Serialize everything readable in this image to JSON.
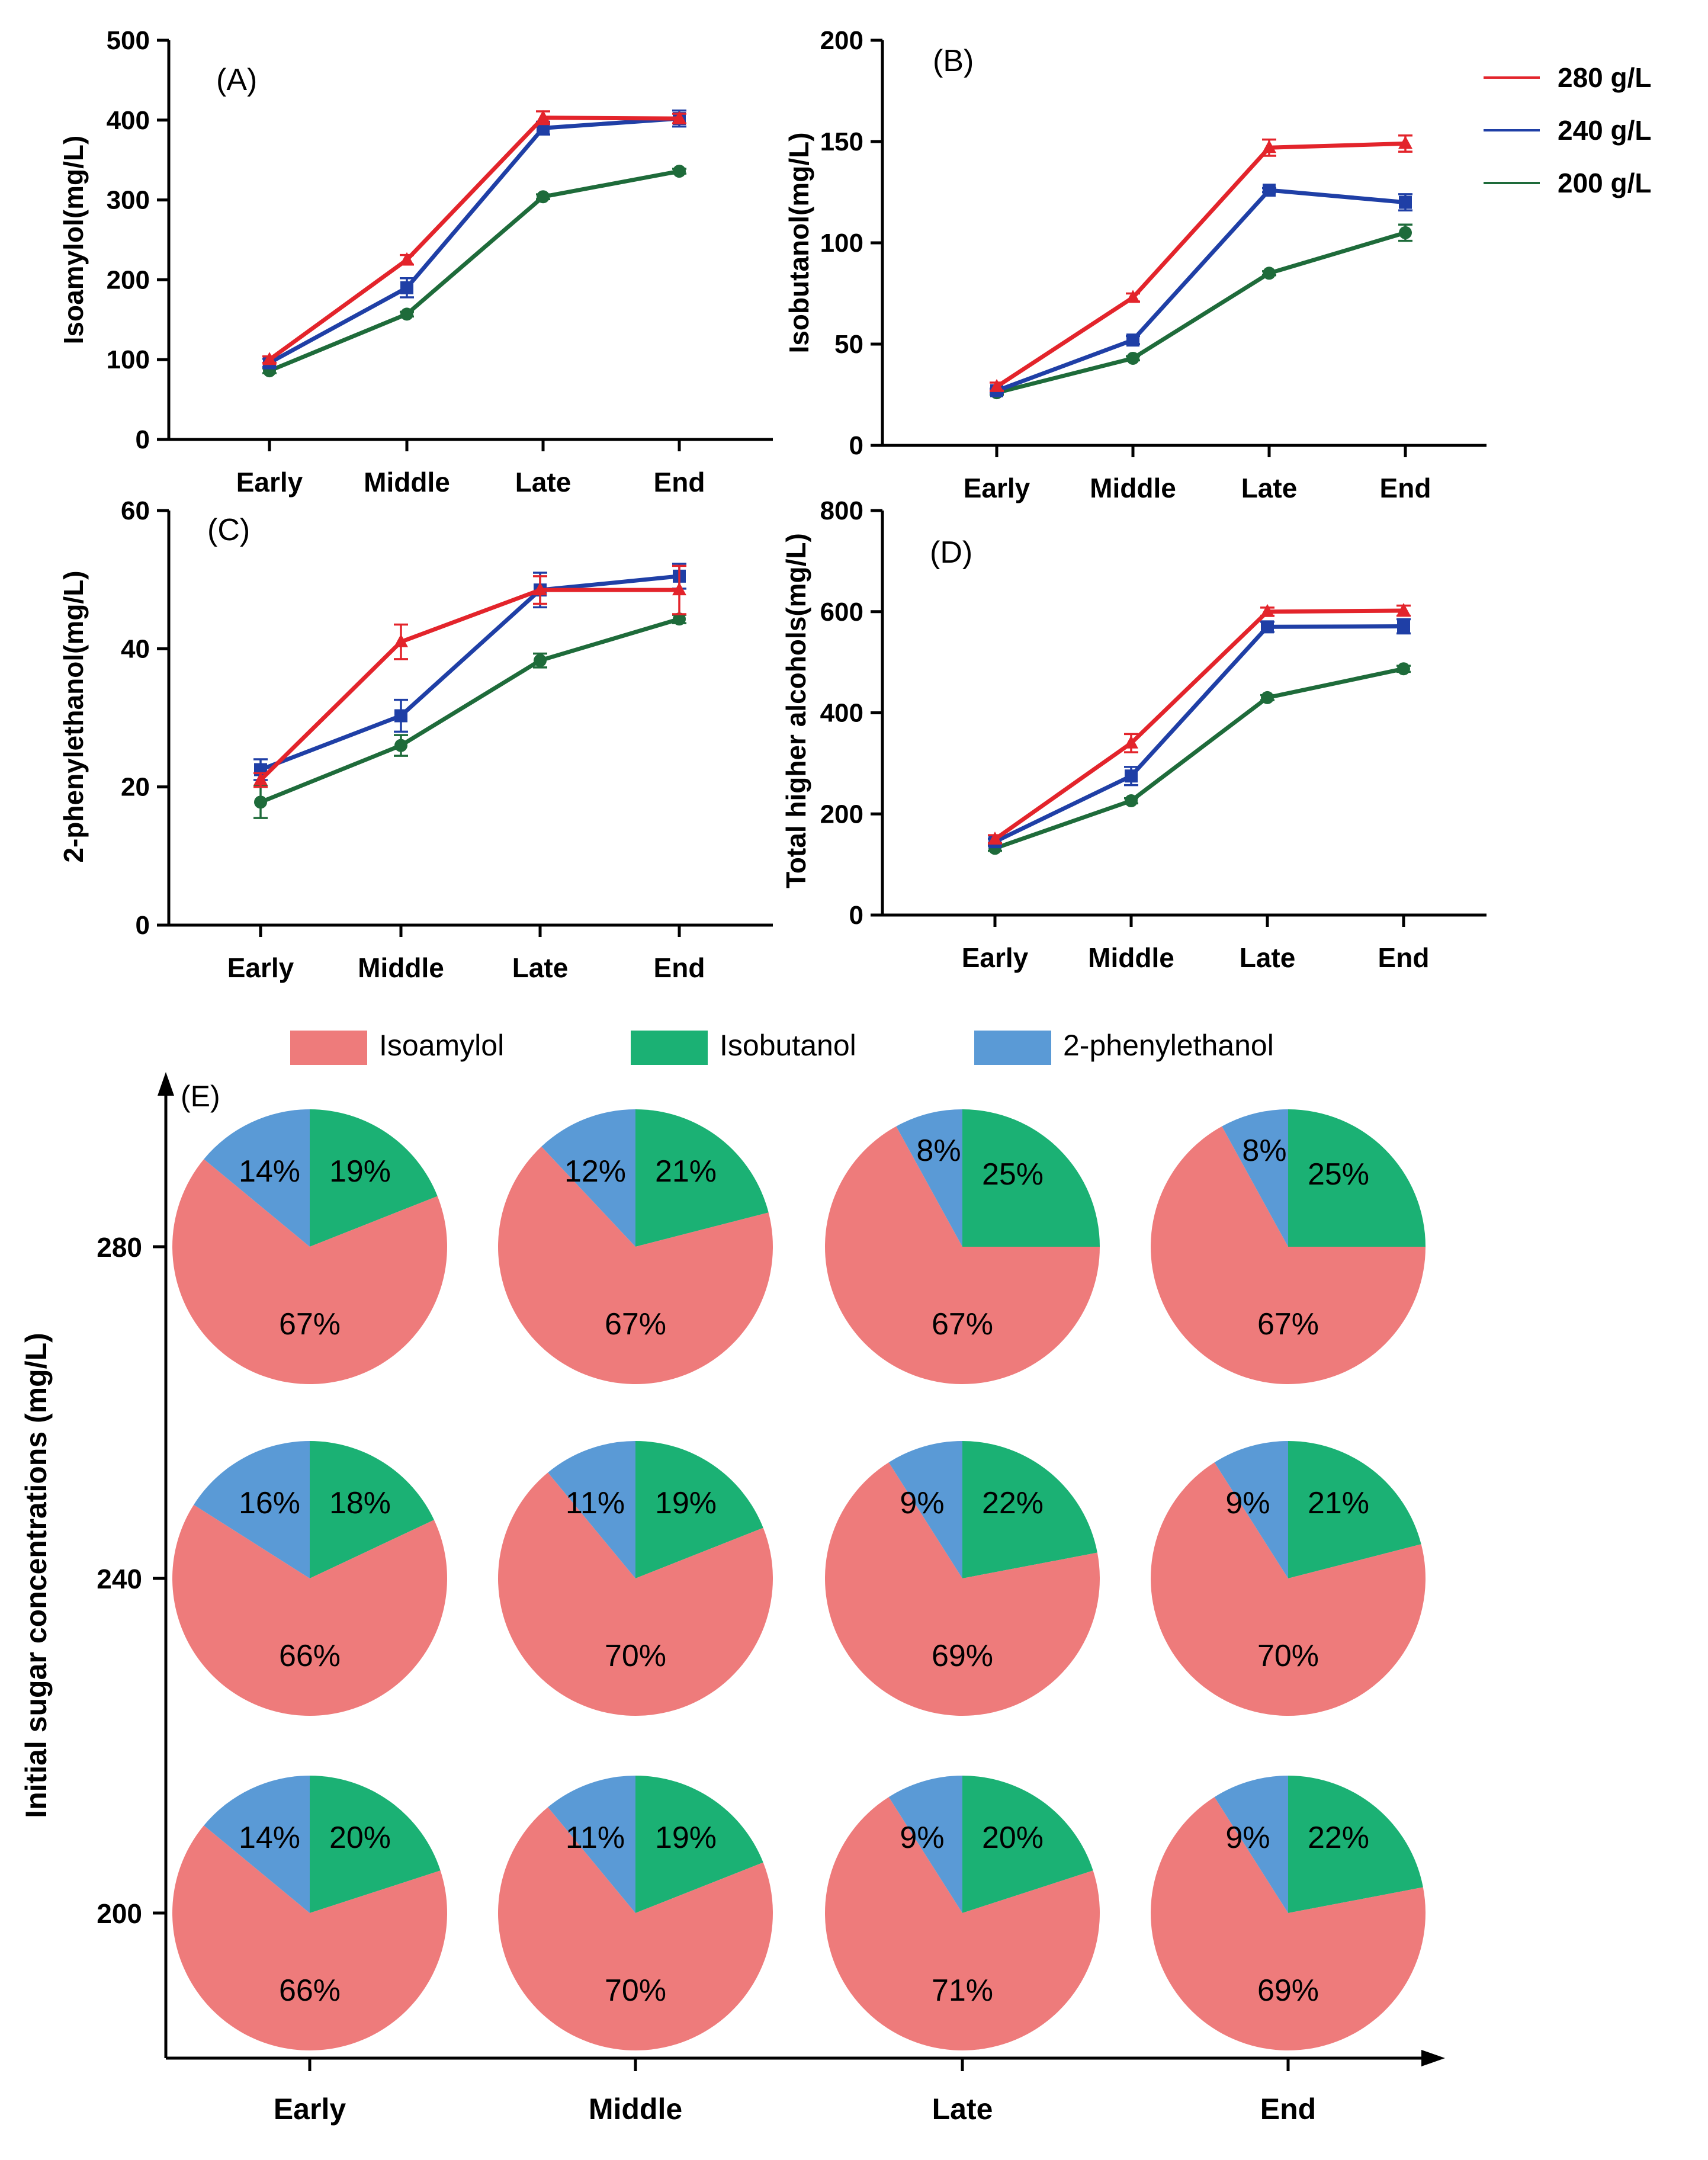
{
  "chart_data": [
    {
      "id": "A",
      "type": "line",
      "panel_label": "(A)",
      "ylabel": "Isoamylol(mg/L)",
      "categories": [
        "Early",
        "Middle",
        "Late",
        "End"
      ],
      "ylim": [
        0,
        500
      ],
      "yticks": [
        0,
        100,
        200,
        300,
        400,
        500
      ],
      "series": [
        {
          "name": "280 g/L",
          "color": "#e3242b",
          "marker": "triangle",
          "values": [
            100,
            225,
            403,
            402
          ],
          "errors": [
            4,
            6,
            8,
            6
          ]
        },
        {
          "name": "240 g/L",
          "color": "#1f3fa6",
          "marker": "square",
          "values": [
            96,
            190,
            390,
            402
          ],
          "errors": [
            5,
            12,
            8,
            10
          ]
        },
        {
          "name": "200 g/L",
          "color": "#1e6b3a",
          "marker": "circle",
          "values": [
            86,
            157,
            304,
            336
          ],
          "errors": [
            3,
            3,
            3,
            3
          ]
        }
      ]
    },
    {
      "id": "B",
      "type": "line",
      "panel_label": "(B)",
      "ylabel": "Isobutanol(mg/L)",
      "categories": [
        "Early",
        "Middle",
        "Late",
        "End"
      ],
      "ylim": [
        0,
        200
      ],
      "yticks": [
        0,
        50,
        100,
        150,
        200
      ],
      "series": [
        {
          "name": "280 g/L",
          "color": "#e3242b",
          "marker": "triangle",
          "values": [
            29,
            73,
            147,
            149
          ],
          "errors": [
            2,
            2,
            4,
            4
          ]
        },
        {
          "name": "240 g/L",
          "color": "#1f3fa6",
          "marker": "square",
          "values": [
            27,
            52,
            126,
            120
          ],
          "errors": [
            1,
            2,
            1,
            4
          ]
        },
        {
          "name": "200 g/L",
          "color": "#1e6b3a",
          "marker": "circle",
          "values": [
            26,
            43,
            85,
            105
          ],
          "errors": [
            1,
            1,
            1,
            4
          ]
        }
      ]
    },
    {
      "id": "C",
      "type": "line",
      "panel_label": "(C)",
      "ylabel": "2-phenylethanol(mg/L)",
      "categories": [
        "Early",
        "Middle",
        "Late",
        "End"
      ],
      "ylim": [
        0,
        60
      ],
      "yticks": [
        0,
        20,
        40,
        60
      ],
      "series": [
        {
          "name": "280 g/L",
          "color": "#e3242b",
          "marker": "triangle",
          "values": [
            21,
            41,
            48.5,
            48.5
          ],
          "errors": [
            1,
            2.5,
            2,
            3.5
          ]
        },
        {
          "name": "240 g/L",
          "color": "#1f3fa6",
          "marker": "square",
          "values": [
            22.5,
            30.3,
            48.5,
            50.5
          ],
          "errors": [
            1.5,
            2.3,
            2.5,
            1.8
          ]
        },
        {
          "name": "200 g/L",
          "color": "#1e6b3a",
          "marker": "circle",
          "values": [
            17.8,
            26,
            38.3,
            44.3
          ],
          "errors": [
            2.3,
            1.5,
            1,
            0.6
          ]
        }
      ]
    },
    {
      "id": "D",
      "type": "line",
      "panel_label": "(D)",
      "ylabel": "Total higher alcohols(mg/L)",
      "categories": [
        "Early",
        "Middle",
        "Late",
        "End"
      ],
      "ylim": [
        0,
        800
      ],
      "yticks": [
        0,
        200,
        400,
        600,
        800
      ],
      "series": [
        {
          "name": "280 g/L",
          "color": "#e3242b",
          "marker": "triangle",
          "values": [
            150,
            340,
            600,
            602
          ],
          "errors": [
            8,
            18,
            8,
            10
          ]
        },
        {
          "name": "240 g/L",
          "color": "#1f3fa6",
          "marker": "square",
          "values": [
            145,
            275,
            570,
            571
          ],
          "errors": [
            6,
            18,
            10,
            14
          ]
        },
        {
          "name": "200 g/L",
          "color": "#1e6b3a",
          "marker": "circle",
          "values": [
            132,
            226,
            430,
            487
          ],
          "errors": [
            5,
            5,
            5,
            6
          ]
        }
      ]
    },
    {
      "id": "E",
      "type": "pie",
      "panel_label": "(E)",
      "ylabel": "Initial sugar concentrations (mg/L)",
      "row_labels": [
        "280",
        "240",
        "200"
      ],
      "col_labels": [
        "Early",
        "Middle",
        "Late",
        "End"
      ],
      "slice_names": [
        "Isoamylol",
        "Isobutanol",
        "2-phenylethanol"
      ],
      "slice_colors": [
        "#ee7b7b",
        "#1bb174",
        "#5a9ad6"
      ],
      "grid": [
        [
          [
            67,
            19,
            14
          ],
          [
            67,
            21,
            12
          ],
          [
            67,
            25,
            8
          ],
          [
            67,
            25,
            8
          ]
        ],
        [
          [
            66,
            18,
            16
          ],
          [
            70,
            19,
            11
          ],
          [
            69,
            22,
            9
          ],
          [
            70,
            21,
            9
          ]
        ],
        [
          [
            66,
            20,
            14
          ],
          [
            70,
            19,
            11
          ],
          [
            71,
            20,
            9
          ],
          [
            69,
            22,
            9
          ]
        ]
      ]
    }
  ],
  "legend_lines": [
    {
      "label": "280 g/L",
      "color": "#e3242b"
    },
    {
      "label": "240 g/L",
      "color": "#1f3fa6"
    },
    {
      "label": "200 g/L",
      "color": "#1e6b3a"
    }
  ],
  "legend_pie": [
    {
      "label": "Isoamylol",
      "color": "#ee7b7b"
    },
    {
      "label": "Isobutanol",
      "color": "#1bb174"
    },
    {
      "label": "2-phenylethanol",
      "color": "#5a9ad6"
    }
  ]
}
